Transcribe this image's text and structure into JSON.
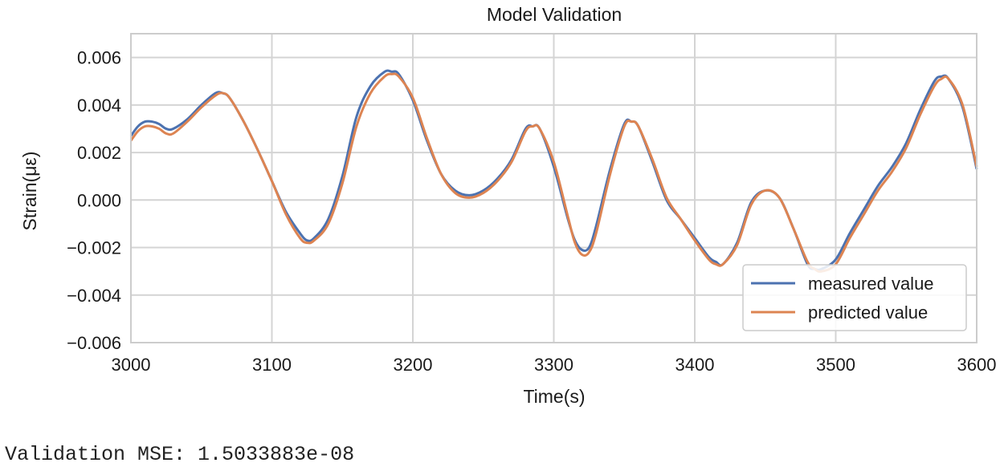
{
  "chart_data": {
    "type": "line",
    "title": "Model Validation",
    "xlabel": "Time(s)",
    "ylabel": "Strain(με)",
    "xlim": [
      3000,
      3600
    ],
    "ylim": [
      -0.006,
      0.007
    ],
    "xticks": [
      3000,
      3100,
      3200,
      3300,
      3400,
      3500,
      3600
    ],
    "xtick_labels": [
      "3000",
      "3100",
      "3200",
      "3300",
      "3400",
      "3500",
      "3600"
    ],
    "yticks": [
      -0.006,
      -0.004,
      -0.002,
      0.0,
      0.002,
      0.004,
      0.006
    ],
    "ytick_labels": [
      "−0.006",
      "−0.004",
      "−0.002",
      "0.000",
      "0.002",
      "0.004",
      "0.006"
    ],
    "grid": true,
    "legend_position": "bottom-right",
    "series": [
      {
        "name": "measured value",
        "color": "#4c72b0",
        "x": [
          3000,
          3005,
          3010,
          3015,
          3020,
          3025,
          3030,
          3040,
          3050,
          3060,
          3065,
          3070,
          3080,
          3090,
          3100,
          3110,
          3120,
          3125,
          3130,
          3140,
          3150,
          3160,
          3170,
          3180,
          3185,
          3190,
          3200,
          3210,
          3220,
          3230,
          3240,
          3250,
          3260,
          3270,
          3280,
          3285,
          3290,
          3300,
          3310,
          3315,
          3320,
          3325,
          3330,
          3340,
          3350,
          3355,
          3360,
          3370,
          3380,
          3390,
          3400,
          3410,
          3415,
          3420,
          3430,
          3440,
          3450,
          3460,
          3470,
          3480,
          3485,
          3490,
          3500,
          3510,
          3520,
          3530,
          3540,
          3550,
          3560,
          3570,
          3575,
          3580,
          3590,
          3600
        ],
        "y": [
          0.0027,
          0.0031,
          0.0033,
          0.0033,
          0.0032,
          0.003,
          0.003,
          0.0034,
          0.004,
          0.0045,
          0.0045,
          0.0043,
          0.0033,
          0.0021,
          0.0008,
          -0.0005,
          -0.0014,
          -0.0017,
          -0.0016,
          -0.0008,
          0.001,
          0.0035,
          0.0048,
          0.0054,
          0.0054,
          0.0053,
          0.0042,
          0.0025,
          0.0011,
          0.0004,
          0.0002,
          0.0004,
          0.0009,
          0.0017,
          0.003,
          0.0031,
          0.003,
          0.0014,
          -0.0008,
          -0.0017,
          -0.0021,
          -0.002,
          -0.0011,
          0.0013,
          0.0032,
          0.0033,
          0.0031,
          0.0016,
          0.0,
          -0.0008,
          -0.0016,
          -0.0024,
          -0.0026,
          -0.0027,
          -0.0018,
          -0.0001,
          0.0004,
          0.0001,
          -0.0012,
          -0.0027,
          -0.0029,
          -0.0029,
          -0.0025,
          -0.0014,
          -0.0004,
          0.0006,
          0.0014,
          0.0024,
          0.0038,
          0.005,
          0.0052,
          0.0051,
          0.0039,
          0.0013
        ]
      },
      {
        "name": "predicted value",
        "color": "#dd8452",
        "x": [
          3000,
          3005,
          3010,
          3015,
          3020,
          3025,
          3030,
          3040,
          3050,
          3060,
          3065,
          3070,
          3080,
          3090,
          3100,
          3110,
          3120,
          3125,
          3130,
          3140,
          3150,
          3160,
          3170,
          3180,
          3185,
          3190,
          3200,
          3210,
          3220,
          3230,
          3240,
          3250,
          3260,
          3270,
          3280,
          3285,
          3290,
          3300,
          3310,
          3315,
          3320,
          3325,
          3330,
          3340,
          3350,
          3355,
          3360,
          3370,
          3380,
          3390,
          3400,
          3410,
          3415,
          3420,
          3430,
          3440,
          3450,
          3460,
          3470,
          3480,
          3485,
          3490,
          3500,
          3510,
          3520,
          3530,
          3540,
          3550,
          3560,
          3570,
          3575,
          3580,
          3590,
          3600
        ],
        "y": [
          0.0025,
          0.0029,
          0.0031,
          0.0031,
          0.003,
          0.0028,
          0.0028,
          0.0033,
          0.0039,
          0.0044,
          0.0045,
          0.0043,
          0.0033,
          0.0021,
          0.0008,
          -0.0006,
          -0.0016,
          -0.0018,
          -0.0017,
          -0.001,
          0.0007,
          0.0031,
          0.0045,
          0.0052,
          0.0053,
          0.0052,
          0.0043,
          0.0026,
          0.0011,
          0.0003,
          0.0001,
          0.0003,
          0.0008,
          0.0016,
          0.0029,
          0.0031,
          0.003,
          0.0016,
          -0.0007,
          -0.0018,
          -0.0023,
          -0.0022,
          -0.0014,
          0.0011,
          0.0031,
          0.0033,
          0.0031,
          0.0017,
          0.0001,
          -0.0008,
          -0.0017,
          -0.0025,
          -0.0027,
          -0.0027,
          -0.0019,
          -0.0002,
          0.0004,
          0.0001,
          -0.0012,
          -0.0026,
          -0.0029,
          -0.003,
          -0.0027,
          -0.0016,
          -0.0006,
          0.0004,
          0.0012,
          0.0022,
          0.0036,
          0.0048,
          0.0051,
          0.0051,
          0.004,
          0.0014
        ]
      }
    ]
  },
  "footer": {
    "mse_text": "Validation MSE: 1.5033883e-08"
  }
}
